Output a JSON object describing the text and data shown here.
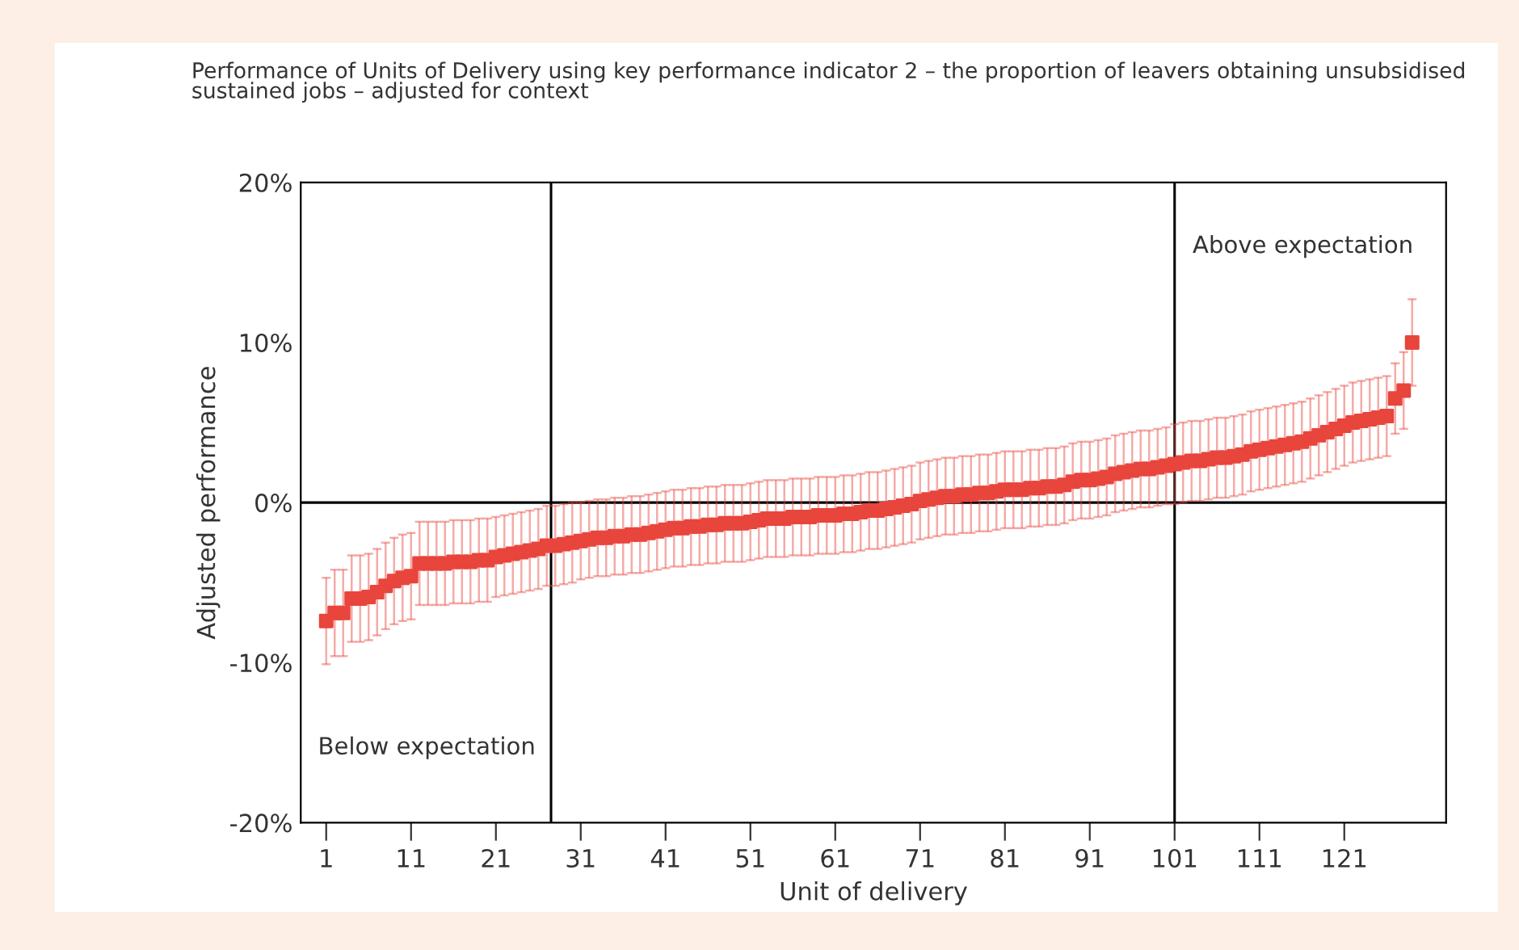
{
  "chart_data": {
    "type": "scatter",
    "title": "Performance of Units of Delivery using key performance indicator 2 – the proportion of leavers obtaining unsubsidised\nsustained jobs – adjusted for context",
    "xlabel": "Unit of delivery",
    "ylabel": "Adjusted performance",
    "x": [
      1,
      2,
      3,
      4,
      5,
      6,
      7,
      8,
      9,
      10,
      11,
      12,
      13,
      14,
      15,
      16,
      17,
      18,
      19,
      20,
      21,
      22,
      23,
      24,
      25,
      26,
      27,
      28,
      29,
      30,
      31,
      32,
      33,
      34,
      35,
      36,
      37,
      38,
      39,
      40,
      41,
      42,
      43,
      44,
      45,
      46,
      47,
      48,
      49,
      50,
      51,
      52,
      53,
      54,
      55,
      56,
      57,
      58,
      59,
      60,
      61,
      62,
      63,
      64,
      65,
      66,
      67,
      68,
      69,
      70,
      71,
      72,
      73,
      74,
      75,
      76,
      77,
      78,
      79,
      80,
      81,
      82,
      83,
      84,
      85,
      86,
      87,
      88,
      89,
      90,
      91,
      92,
      93,
      94,
      95,
      96,
      97,
      98,
      99,
      100,
      101,
      102,
      103,
      104,
      105,
      106,
      107,
      108,
      109,
      110,
      111,
      112,
      113,
      114,
      115,
      116,
      117,
      118,
      119,
      120,
      121,
      122,
      123,
      124,
      125,
      126,
      127,
      128,
      129
    ],
    "series": [
      {
        "color": "#e8453c",
        "marker": "square",
        "values": [
          -7.4,
          -6.9,
          -6.9,
          -6.0,
          -6.0,
          -5.9,
          -5.6,
          -5.2,
          -4.9,
          -4.7,
          -4.6,
          -3.8,
          -3.8,
          -3.8,
          -3.8,
          -3.7,
          -3.7,
          -3.7,
          -3.6,
          -3.6,
          -3.4,
          -3.3,
          -3.2,
          -3.1,
          -3.0,
          -2.9,
          -2.7,
          -2.7,
          -2.6,
          -2.5,
          -2.4,
          -2.3,
          -2.2,
          -2.2,
          -2.1,
          -2.1,
          -2.0,
          -2.0,
          -1.9,
          -1.8,
          -1.7,
          -1.6,
          -1.6,
          -1.5,
          -1.5,
          -1.4,
          -1.4,
          -1.3,
          -1.3,
          -1.3,
          -1.2,
          -1.1,
          -1.0,
          -1.0,
          -1.0,
          -0.9,
          -0.9,
          -0.9,
          -0.8,
          -0.8,
          -0.8,
          -0.7,
          -0.7,
          -0.6,
          -0.5,
          -0.5,
          -0.4,
          -0.3,
          -0.2,
          -0.1,
          0.1,
          0.2,
          0.3,
          0.4,
          0.4,
          0.5,
          0.5,
          0.6,
          0.6,
          0.7,
          0.8,
          0.8,
          0.8,
          0.9,
          0.9,
          1.0,
          1.0,
          1.1,
          1.3,
          1.4,
          1.4,
          1.5,
          1.6,
          1.8,
          1.9,
          2.0,
          2.1,
          2.1,
          2.2,
          2.3,
          2.4,
          2.5,
          2.6,
          2.6,
          2.7,
          2.8,
          2.8,
          2.9,
          3.0,
          3.2,
          3.3,
          3.4,
          3.5,
          3.6,
          3.7,
          3.8,
          4.0,
          4.2,
          4.4,
          4.6,
          4.8,
          5.0,
          5.1,
          5.2,
          5.3,
          5.4,
          6.5,
          7.0,
          10.0
        ],
        "errors": [
          2.7,
          2.7,
          2.7,
          2.7,
          2.7,
          2.7,
          2.7,
          2.7,
          2.7,
          2.7,
          2.7,
          2.6,
          2.6,
          2.6,
          2.6,
          2.6,
          2.6,
          2.6,
          2.6,
          2.6,
          2.5,
          2.5,
          2.5,
          2.5,
          2.5,
          2.5,
          2.5,
          2.5,
          2.5,
          2.5,
          2.4,
          2.4,
          2.4,
          2.4,
          2.4,
          2.4,
          2.4,
          2.4,
          2.4,
          2.4,
          2.4,
          2.4,
          2.4,
          2.4,
          2.4,
          2.4,
          2.4,
          2.4,
          2.4,
          2.4,
          2.4,
          2.4,
          2.4,
          2.4,
          2.4,
          2.4,
          2.4,
          2.4,
          2.4,
          2.4,
          2.4,
          2.4,
          2.4,
          2.4,
          2.4,
          2.4,
          2.4,
          2.4,
          2.4,
          2.4,
          2.4,
          2.4,
          2.4,
          2.4,
          2.4,
          2.4,
          2.4,
          2.4,
          2.4,
          2.4,
          2.4,
          2.4,
          2.4,
          2.4,
          2.4,
          2.4,
          2.4,
          2.4,
          2.4,
          2.4,
          2.4,
          2.4,
          2.4,
          2.4,
          2.4,
          2.4,
          2.4,
          2.4,
          2.4,
          2.4,
          2.5,
          2.5,
          2.5,
          2.5,
          2.5,
          2.5,
          2.5,
          2.5,
          2.5,
          2.5,
          2.5,
          2.5,
          2.5,
          2.5,
          2.5,
          2.5,
          2.5,
          2.5,
          2.5,
          2.5,
          2.5,
          2.5,
          2.5,
          2.5,
          2.5,
          2.5,
          2.2,
          2.4,
          2.7
        ]
      }
    ],
    "xlim": [
      -2,
      133
    ],
    "xticks": [
      1,
      11,
      21,
      31,
      41,
      51,
      61,
      71,
      81,
      91,
      101,
      111,
      121
    ],
    "ylim": [
      -20,
      20
    ],
    "yticks": [
      {
        "value": -20,
        "label": "-20%"
      },
      {
        "value": -10,
        "label": "-10%"
      },
      {
        "value": 0,
        "label": "0%"
      },
      {
        "value": 10,
        "label": "10%"
      },
      {
        "value": 20,
        "label": "20%"
      }
    ],
    "ref_lines": [
      {
        "axis": "y",
        "value": 0,
        "color": "#000000"
      },
      {
        "axis": "x",
        "value": 27.5,
        "color": "#000000"
      },
      {
        "axis": "x",
        "value": 101,
        "color": "#000000"
      }
    ],
    "annotations": [
      "Above expectation",
      "Below expectation"
    ],
    "grid": false,
    "legend": false
  }
}
